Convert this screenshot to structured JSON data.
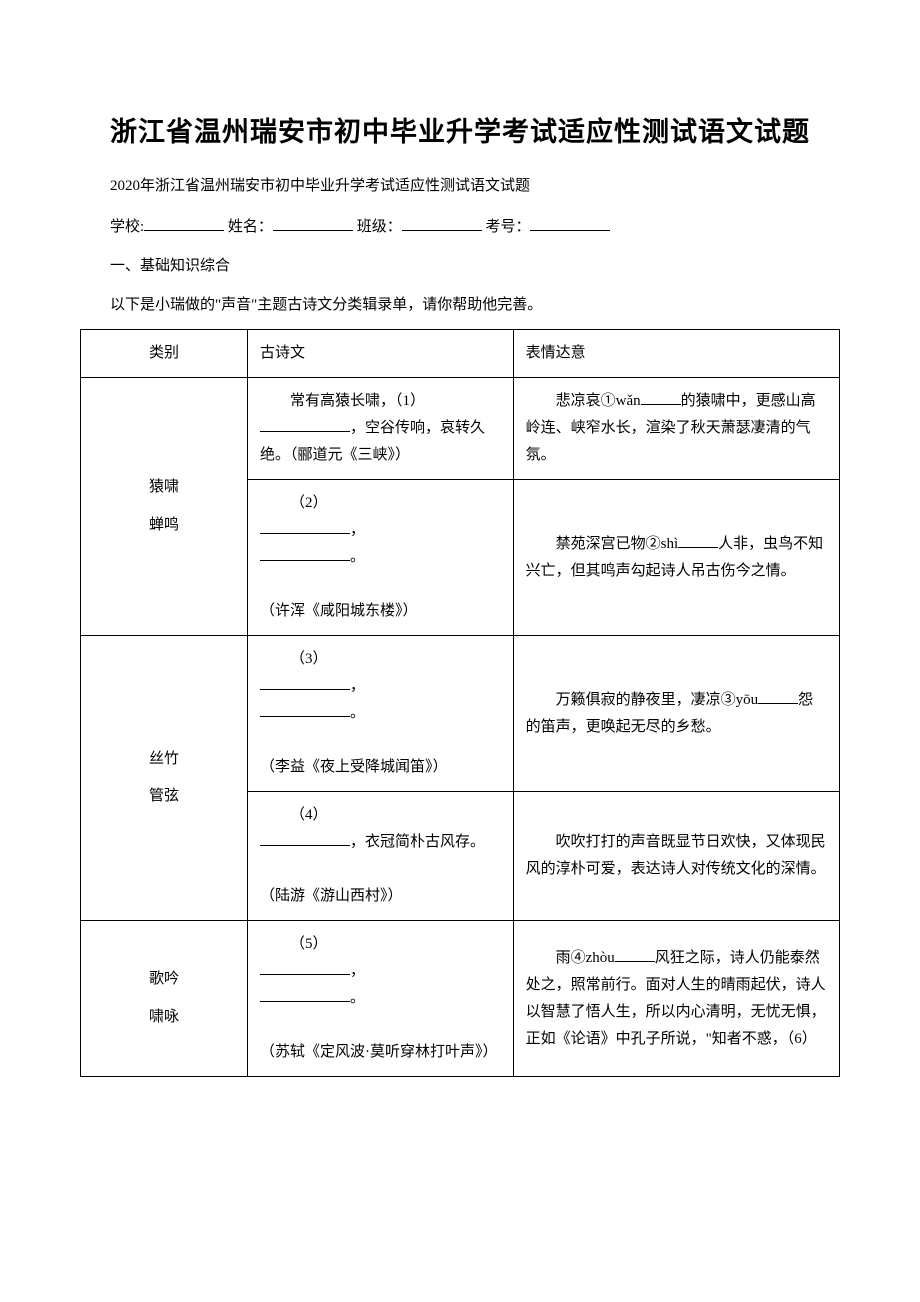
{
  "title": "浙江省温州瑞安市初中毕业升学考试适应性测试语文试题",
  "subtitle": "2020年浙江省温州瑞安市初中毕业升学考试适应性测试语文试题",
  "form": {
    "school": "学校:",
    "name": "姓名：",
    "class": "班级：",
    "examno": "考号："
  },
  "section1": "一、基础知识综合",
  "intro": "以下是小瑞做的\"声音\"主题古诗文分类辑录单，请你帮助他完善。",
  "headers": {
    "category": "类别",
    "poem": "古诗文",
    "meaning": "表情达意"
  },
  "rows": [
    {
      "category_lines": [
        "猿啸",
        "蝉鸣"
      ],
      "items": [
        {
          "poem_pre": "常有高猿长啸，（1）",
          "poem_post": "，空谷传响，哀转久绝。（郦道元《三峡》）",
          "meaning_pre": "悲凉哀①wǎn",
          "meaning_post": "的猿啸中，更感山高岭连、峡窄水长，渲染了秋天萧瑟凄清的气氛。"
        },
        {
          "poem_label": "（2）",
          "poem_source": "（许浑《咸阳城东楼》）",
          "meaning_pre": "禁苑深宫已物②shì",
          "meaning_post": "人非，虫鸟不知兴亡，但其鸣声勾起诗人吊古伤今之情。"
        }
      ]
    },
    {
      "category_lines": [
        "丝竹",
        "管弦"
      ],
      "items": [
        {
          "poem_label": "（3）",
          "poem_source": "（李益《夜上受降城闻笛》）",
          "meaning_pre": "万籁俱寂的静夜里，凄凉③yōu",
          "meaning_post": "怨的笛声，更唤起无尽的乡愁。"
        },
        {
          "poem_label": "（4）",
          "poem_post_text": "，衣冠简朴古风存。",
          "poem_source": "（陆游《游山西村》）",
          "meaning_full": "吹吹打打的声音既显节日欢快，又体现民风的淳朴可爱，表达诗人对传统文化的深情。"
        }
      ]
    },
    {
      "category_lines": [
        "歌吟",
        "啸咏"
      ],
      "poem_label": "（5）",
      "poem_source": "（苏轼《定风波·莫听穿林打叶声》）",
      "meaning_pre": "雨④zhòu",
      "meaning_post": "风狂之际，诗人仍能泰然处之，照常前行。面对人生的晴雨起伏，诗人以智慧了悟人生，所以内心清明，无忧无惧，正如《论语》中孔子所说，\"知者不惑，（6）"
    }
  ]
}
